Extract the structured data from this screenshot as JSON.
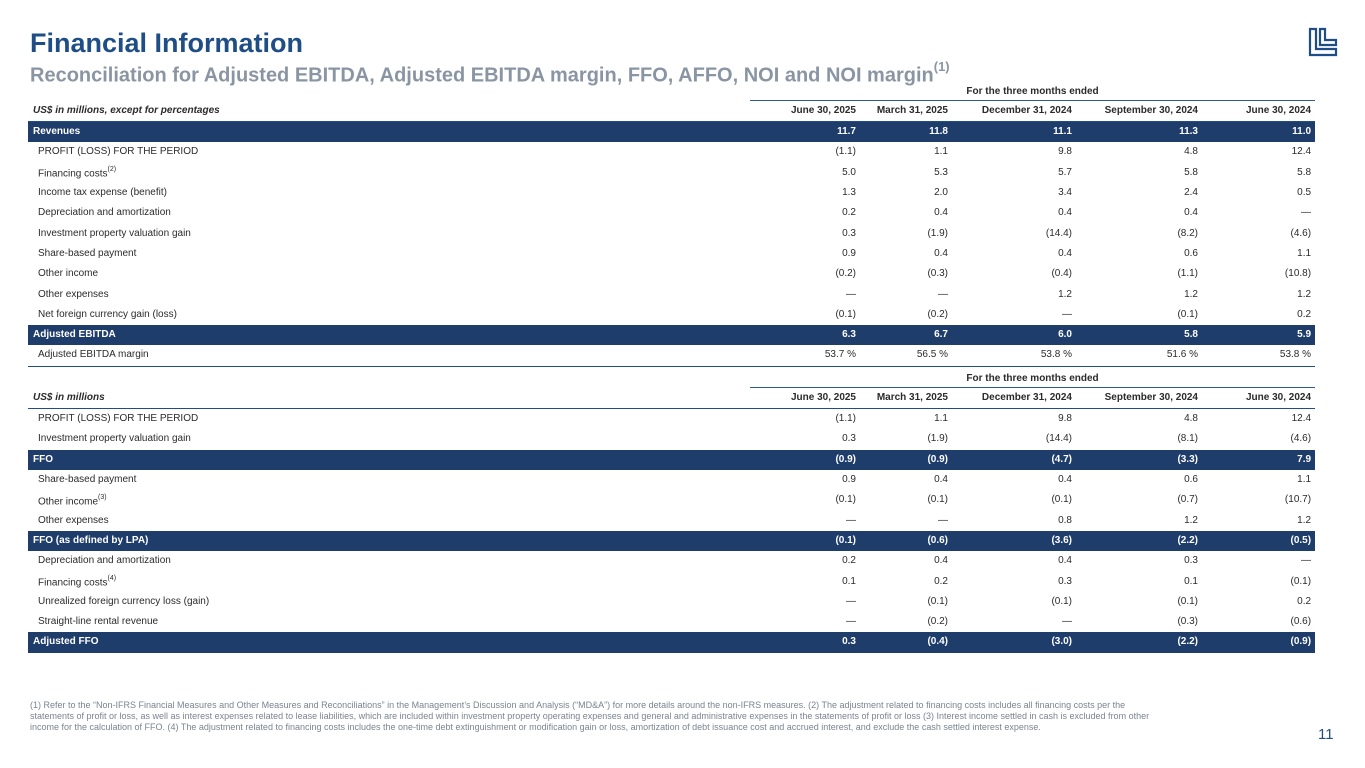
{
  "header": {
    "title": "Financial Information",
    "subtitle": "Reconciliation for Adjusted EBITDA, Adjusted EBITDA margin, FFO, AFFO, NOI and NOI margin",
    "subtitle_sup": "(1)"
  },
  "brand": {
    "primary": "#1f4e87",
    "band": "#1f3d6b",
    "muted": "#8a95a3"
  },
  "logo": {
    "icon": "company-logo-icon"
  },
  "table1": {
    "period_label": "For the three months ended",
    "units_label": "US$ in millions, except for percentages",
    "columns": [
      "June 30, 2025",
      "March 31, 2025",
      "December 31, 2024",
      "September 30, 2024",
      "June 30, 2024"
    ],
    "rows": [
      {
        "label": "Revenues",
        "sup": "",
        "values": [
          "11.7",
          "11.8",
          "11.1",
          "11.3",
          "11.0"
        ]
      },
      {
        "label": "PROFIT (LOSS) FOR THE PERIOD",
        "sup": "",
        "values": [
          "(1.1)",
          "1.1",
          "9.8",
          "4.8",
          "12.4"
        ]
      },
      {
        "label": "Financing costs",
        "sup": "(2)",
        "values": [
          "5.0",
          "5.3",
          "5.7",
          "5.8",
          "5.8"
        ]
      },
      {
        "label": "Income tax expense (benefit)",
        "sup": "",
        "values": [
          "1.3",
          "2.0",
          "3.4",
          "2.4",
          "0.5"
        ]
      },
      {
        "label": "Depreciation and amortization",
        "sup": "",
        "values": [
          "0.2",
          "0.4",
          "0.4",
          "0.4",
          "—"
        ]
      },
      {
        "label": "Investment property valuation gain",
        "sup": "",
        "values": [
          "0.3",
          "(1.9)",
          "(14.4)",
          "(8.2)",
          "(4.6)"
        ]
      },
      {
        "label": "Share-based payment",
        "sup": "",
        "values": [
          "0.9",
          "0.4",
          "0.4",
          "0.6",
          "1.1"
        ]
      },
      {
        "label": "Other income",
        "sup": "",
        "values": [
          "(0.2)",
          "(0.3)",
          "(0.4)",
          "(1.1)",
          "(10.8)"
        ]
      },
      {
        "label": "Other expenses",
        "sup": "",
        "values": [
          "—",
          "—",
          "1.2",
          "1.2",
          "1.2"
        ]
      },
      {
        "label": "Net foreign currency gain (loss)",
        "sup": "",
        "values": [
          "(0.1)",
          "(0.2)",
          "—",
          "(0.1)",
          "0.2"
        ]
      },
      {
        "label": "Adjusted EBITDA",
        "sup": "",
        "values": [
          "6.3",
          "6.7",
          "6.0",
          "5.8",
          "5.9"
        ]
      },
      {
        "label": "Adjusted EBITDA margin",
        "sup": "",
        "values": [
          "53.7 %",
          "56.5 %",
          "53.8 %",
          "51.6 %",
          "53.8 %"
        ]
      }
    ]
  },
  "table2": {
    "period_label": "For the three months ended",
    "units_label": "US$ in millions",
    "columns": [
      "June 30, 2025",
      "March 31, 2025",
      "December 31, 2024",
      "September 30, 2024",
      "June 30, 2024"
    ],
    "rows": [
      {
        "label": "PROFIT (LOSS) FOR THE PERIOD",
        "sup": "",
        "values": [
          "(1.1)",
          "1.1",
          "9.8",
          "4.8",
          "12.4"
        ]
      },
      {
        "label": "Investment property valuation gain",
        "sup": "",
        "values": [
          "0.3",
          "(1.9)",
          "(14.4)",
          "(8.1)",
          "(4.6)"
        ]
      },
      {
        "label": "FFO",
        "sup": "",
        "values": [
          "(0.9)",
          "(0.9)",
          "(4.7)",
          "(3.3)",
          "7.9"
        ]
      },
      {
        "label": "Share-based payment",
        "sup": "",
        "values": [
          "0.9",
          "0.4",
          "0.4",
          "0.6",
          "1.1"
        ]
      },
      {
        "label": "Other income",
        "sup": "(3)",
        "values": [
          "(0.1)",
          "(0.1)",
          "(0.1)",
          "(0.7)",
          "(10.7)"
        ]
      },
      {
        "label": "Other expenses",
        "sup": "",
        "values": [
          "—",
          "—",
          "0.8",
          "1.2",
          "1.2"
        ]
      },
      {
        "label": "FFO (as defined by LPA)",
        "sup": "",
        "values": [
          "(0.1)",
          "(0.6)",
          "(3.6)",
          "(2.2)",
          "(0.5)"
        ]
      },
      {
        "label": "Depreciation and amortization",
        "sup": "",
        "values": [
          "0.2",
          "0.4",
          "0.4",
          "0.3",
          "—"
        ]
      },
      {
        "label": "Financing costs",
        "sup": "(4)",
        "values": [
          "0.1",
          "0.2",
          "0.3",
          "0.1",
          "(0.1)"
        ]
      },
      {
        "label": "Unrealized foreign currency loss (gain)",
        "sup": "",
        "values": [
          "—",
          "(0.1)",
          "(0.1)",
          "(0.1)",
          "0.2"
        ]
      },
      {
        "label": "Straight-line rental revenue",
        "sup": "",
        "values": [
          "—",
          "(0.2)",
          "—",
          "(0.3)",
          "(0.6)"
        ]
      },
      {
        "label": "Adjusted FFO",
        "sup": "",
        "values": [
          "0.3",
          "(0.4)",
          "(3.0)",
          "(2.2)",
          "(0.9)"
        ]
      }
    ]
  },
  "footnote": "(1) Refer to the “Non-IFRS Financial Measures and Other Measures and Reconciliations” in the Management’s Discussion and Analysis (“MD&A”) for more details around  the non-IFRS measures. (2) The adjustment related to financing costs includes all financing costs per the statements of profit or loss, as well as interest expenses related to lease liabilities, which are included within investment property operating expenses and general and administrative expenses in the statements of profit or loss  (3) Interest income settled in cash is excluded from other income for the calculation of FFO. (4) The adjustment related to financing costs includes the one-time debt extinguishment or modification gain or loss, amortization of debt issuance cost and accrued interest, and exclude the cash settled interest expense.",
  "page_number": "11"
}
